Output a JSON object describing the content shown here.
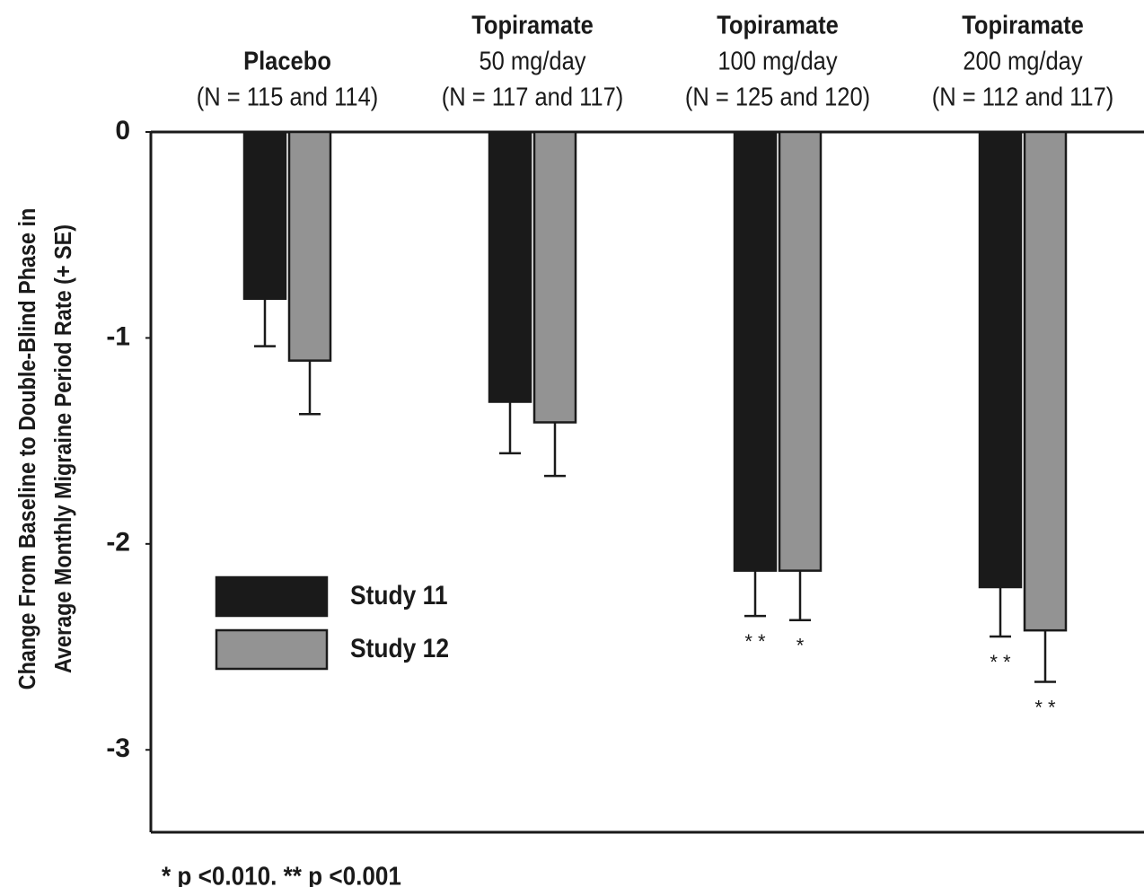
{
  "chart_data": {
    "type": "bar",
    "ylabel": [
      "Change From Baseline to Double-Blind Phase in",
      "Average Monthly Migraine Period Rate (+ SE)"
    ],
    "categories": [
      [
        "Placebo",
        "(N = 115 and 114)"
      ],
      [
        "Topiramate",
        "50 mg/day",
        "(N = 117 and 117)"
      ],
      [
        "Topiramate",
        "100 mg/day",
        "(N = 125 and 120)"
      ],
      [
        "Topiramate",
        "200 mg/day",
        "(N = 112 and 117)"
      ]
    ],
    "series": [
      {
        "name": "Study 11",
        "color": "#1a1a1a",
        "values": [
          -0.81,
          -1.31,
          -2.13,
          -2.21
        ],
        "errors": [
          0.23,
          0.25,
          0.22,
          0.24
        ],
        "significance": [
          null,
          null,
          "* *",
          "* *"
        ]
      },
      {
        "name": "Study 12",
        "color": "#939393",
        "values": [
          -1.11,
          -1.41,
          -2.13,
          -2.42
        ],
        "errors": [
          0.26,
          0.26,
          0.24,
          0.25
        ],
        "significance": [
          null,
          null,
          "*",
          "* *"
        ]
      }
    ],
    "ylim": [
      -3.4,
      0
    ],
    "yticks": [
      0,
      -1,
      -2,
      -3
    ],
    "grid": false,
    "legend": "lower left",
    "footnote": "* p <0.010. ** p <0.001"
  }
}
